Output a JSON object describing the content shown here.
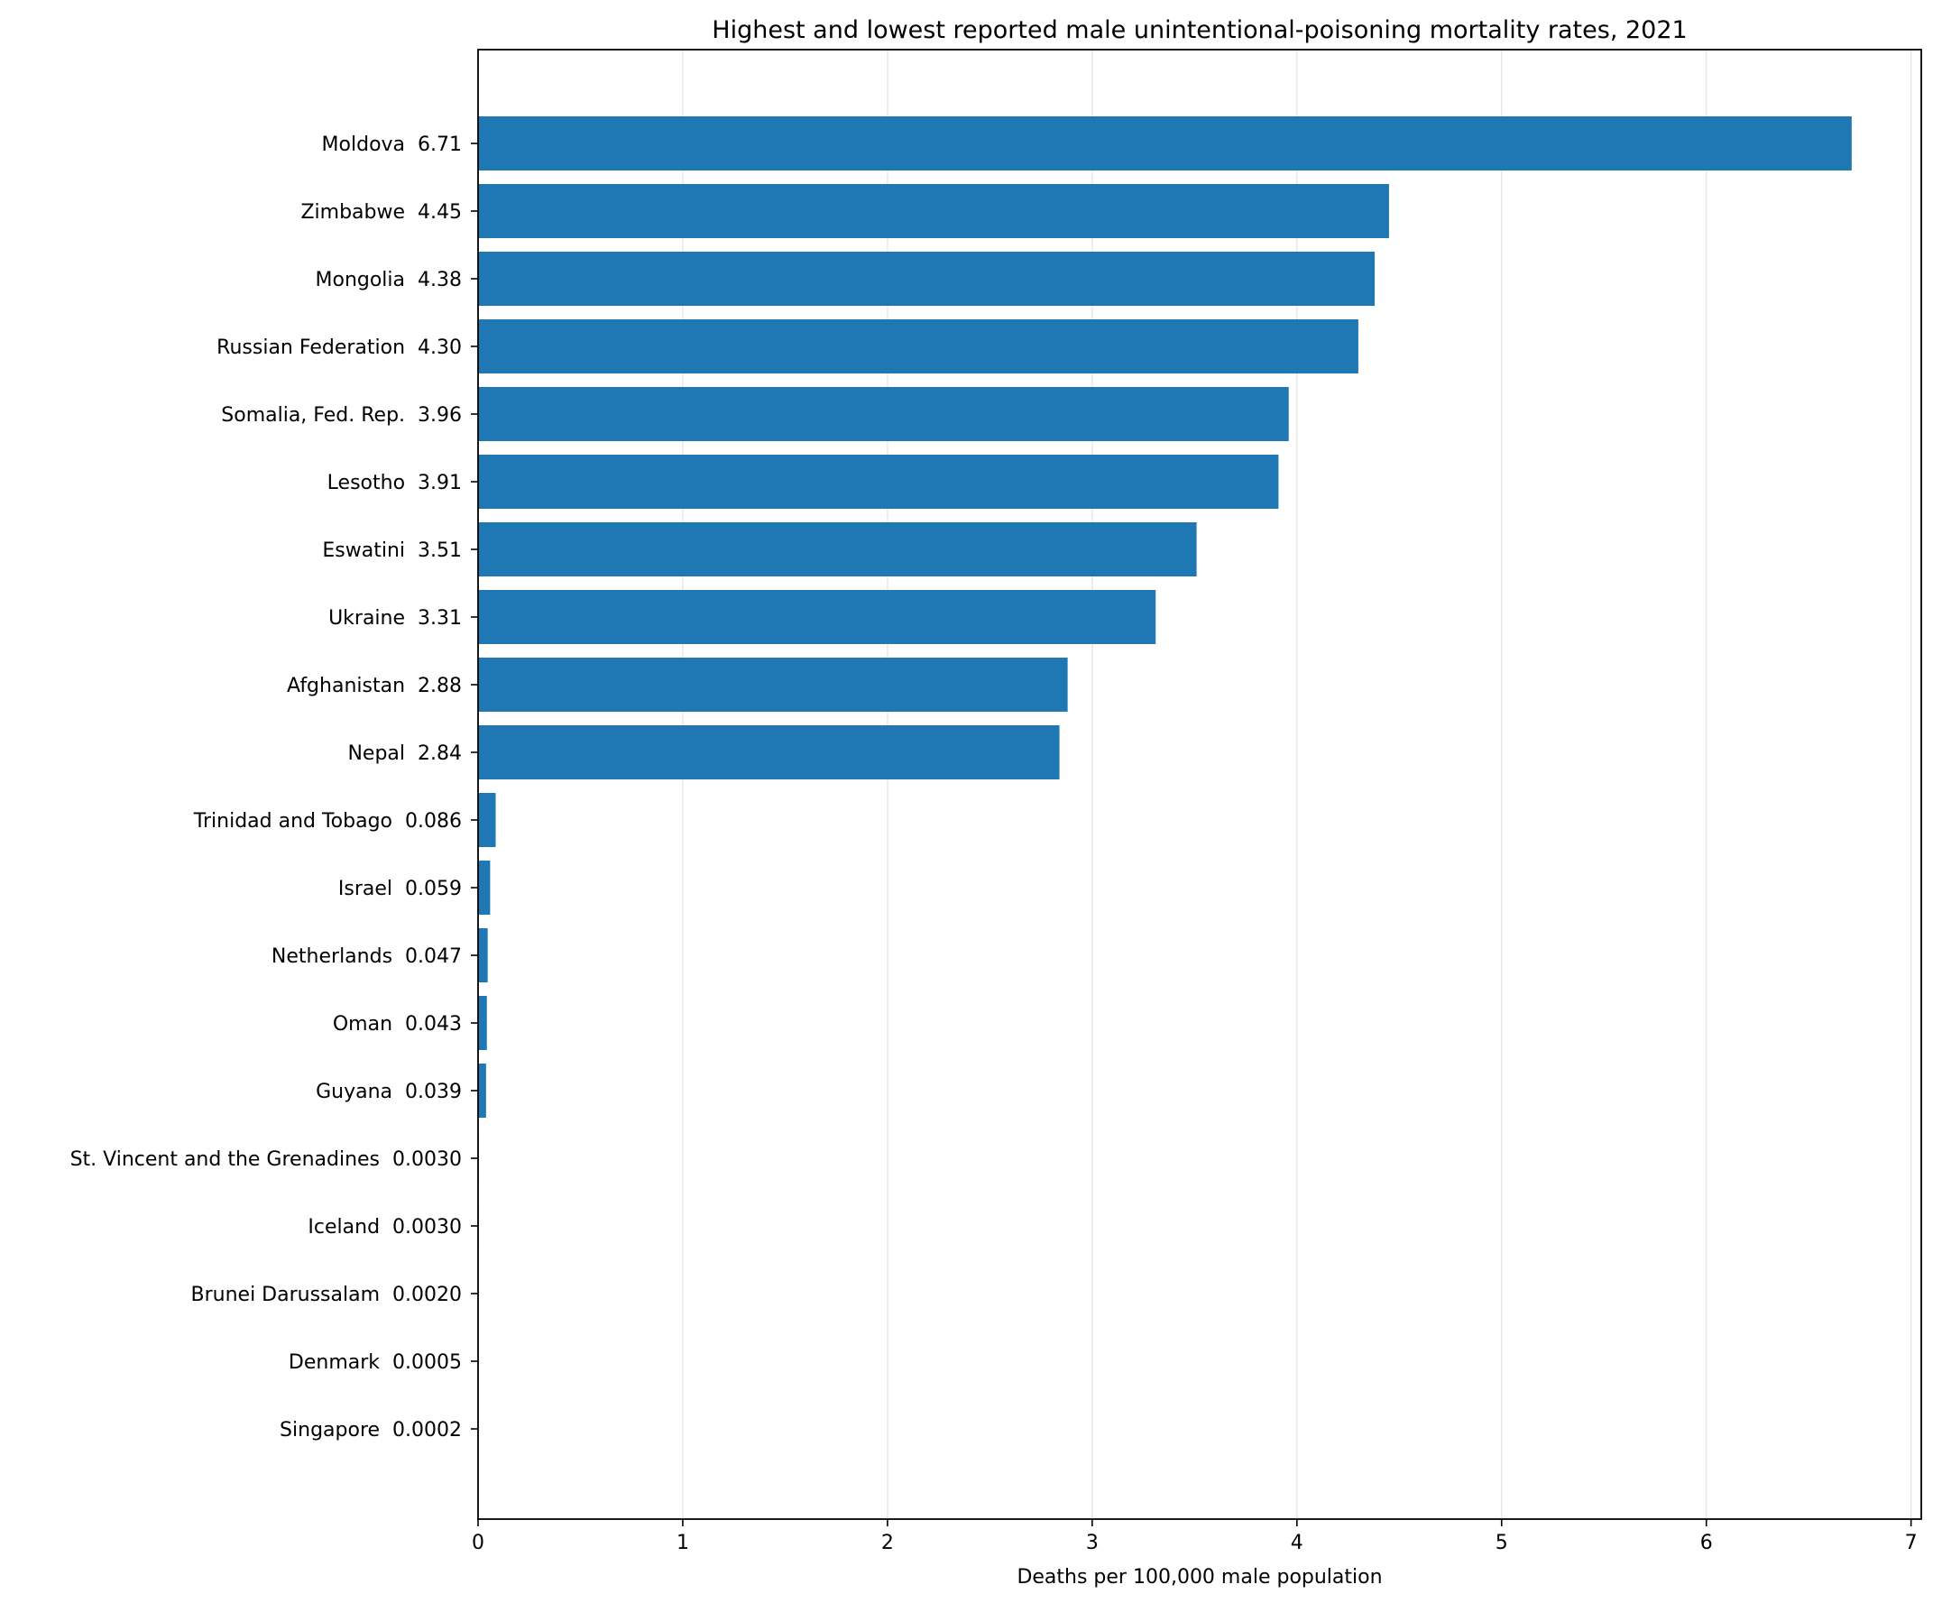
{
  "chart_data": {
    "type": "bar",
    "orientation": "horizontal",
    "title": "Highest and lowest reported male unintentional-poisoning mortality rates, 2021",
    "xlabel": "Deaths per 100,000 male population",
    "ylabel": "",
    "xlim": [
      0,
      7.05
    ],
    "xticks": [
      0,
      1,
      2,
      3,
      4,
      5,
      6,
      7
    ],
    "grid": "x-only",
    "bar_color": "#1f77b4",
    "categories": [
      "Moldova",
      "Zimbabwe",
      "Mongolia",
      "Russian Federation",
      "Somalia, Fed. Rep.",
      "Lesotho",
      "Eswatini",
      "Ukraine",
      "Afghanistan",
      "Nepal",
      "Trinidad and Tobago",
      "Israel",
      "Netherlands",
      "Oman",
      "Guyana",
      "St. Vincent and the Grenadines",
      "Iceland",
      "Brunei Darussalam",
      "Denmark",
      "Singapore"
    ],
    "values": [
      6.71,
      4.45,
      4.38,
      4.3,
      3.96,
      3.91,
      3.51,
      3.31,
      2.88,
      2.84,
      0.086,
      0.059,
      0.047,
      0.043,
      0.039,
      0.003,
      0.003,
      0.002,
      0.0005,
      0.0002
    ],
    "value_labels": [
      "6.71",
      "4.45",
      "4.38",
      "4.30",
      "3.96",
      "3.91",
      "3.51",
      "3.31",
      "2.88",
      "2.84",
      "0.086",
      "0.059",
      "0.047",
      "0.043",
      "0.039",
      "0.0030",
      "0.0030",
      "0.0020",
      "0.0005",
      "0.0002"
    ]
  }
}
